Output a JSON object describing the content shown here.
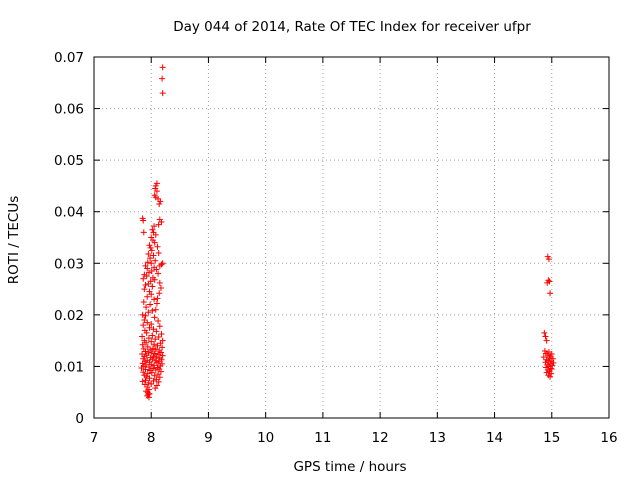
{
  "chart_data": {
    "type": "scatter",
    "title": "Day 044 of 2014, Rate Of TEC Index for receiver ufpr",
    "xlabel": "GPS time / hours",
    "ylabel": "ROTI / TECUs",
    "xlim": [
      7,
      16
    ],
    "ylim": [
      0,
      0.07
    ],
    "xticks": [
      7,
      8,
      9,
      10,
      11,
      12,
      13,
      14,
      15,
      16
    ],
    "xtick_labels": [
      "7",
      "8",
      "9",
      "10",
      "11",
      "12",
      "13",
      "14",
      "15",
      "16"
    ],
    "yticks": [
      0,
      0.01,
      0.02,
      0.03,
      0.04,
      0.05,
      0.06,
      0.07
    ],
    "ytick_labels": [
      "0",
      "0.01",
      "0.02",
      "0.03",
      "0.04",
      "0.05",
      "0.06",
      "0.07"
    ],
    "grid": true,
    "marker": "+",
    "color": "#ff0000",
    "series": [
      {
        "name": "ROTI",
        "points": [
          [
            8.2,
            0.068
          ],
          [
            8.19,
            0.0658
          ],
          [
            8.2,
            0.063
          ],
          [
            8.1,
            0.0455
          ],
          [
            8.08,
            0.045
          ],
          [
            8.07,
            0.0445
          ],
          [
            8.1,
            0.044
          ],
          [
            8.06,
            0.0432
          ],
          [
            8.08,
            0.0428
          ],
          [
            8.12,
            0.0425
          ],
          [
            8.16,
            0.042
          ],
          [
            8.14,
            0.0415
          ],
          [
            7.85,
            0.0387
          ],
          [
            7.86,
            0.0383
          ],
          [
            8.15,
            0.0385
          ],
          [
            8.18,
            0.038
          ],
          [
            8.13,
            0.0375
          ],
          [
            8.05,
            0.0372
          ],
          [
            8.02,
            0.0365
          ],
          [
            8.04,
            0.036
          ],
          [
            7.87,
            0.036
          ],
          [
            8.08,
            0.0355
          ],
          [
            8.0,
            0.035
          ],
          [
            8.03,
            0.0345
          ],
          [
            8.06,
            0.034
          ],
          [
            7.97,
            0.0335
          ],
          [
            8.11,
            0.0332
          ],
          [
            7.99,
            0.033
          ],
          [
            8.01,
            0.0325
          ],
          [
            8.13,
            0.032
          ],
          [
            7.95,
            0.0318
          ],
          [
            8.04,
            0.0315
          ],
          [
            7.98,
            0.031
          ],
          [
            8.07,
            0.0305
          ],
          [
            7.94,
            0.0302
          ],
          [
            8.0,
            0.03
          ],
          [
            8.2,
            0.03
          ],
          [
            8.18,
            0.0298
          ],
          [
            8.15,
            0.0295
          ],
          [
            7.9,
            0.0295
          ],
          [
            8.05,
            0.0292
          ],
          [
            7.93,
            0.029
          ],
          [
            8.09,
            0.0288
          ],
          [
            8.01,
            0.0285
          ],
          [
            7.96,
            0.0282
          ],
          [
            8.12,
            0.028
          ],
          [
            7.88,
            0.0278
          ],
          [
            7.92,
            0.0275
          ],
          [
            8.03,
            0.0272
          ],
          [
            7.86,
            0.027
          ],
          [
            8.06,
            0.0268
          ],
          [
            7.99,
            0.0265
          ],
          [
            8.15,
            0.0262
          ],
          [
            7.95,
            0.026
          ],
          [
            7.9,
            0.0258
          ],
          [
            8.02,
            0.0255
          ],
          [
            7.88,
            0.025
          ],
          [
            8.17,
            0.0252
          ],
          [
            7.97,
            0.0245
          ],
          [
            8.14,
            0.0242
          ],
          [
            8.0,
            0.024
          ],
          [
            7.93,
            0.0235
          ],
          [
            8.11,
            0.0232
          ],
          [
            8.05,
            0.023
          ],
          [
            7.87,
            0.0225
          ],
          [
            8.1,
            0.0222
          ],
          [
            7.98,
            0.022
          ],
          [
            7.91,
            0.0215
          ],
          [
            8.08,
            0.021
          ],
          [
            8.02,
            0.0208
          ],
          [
            7.95,
            0.0205
          ],
          [
            7.85,
            0.02
          ],
          [
            7.9,
            0.0198
          ],
          [
            8.06,
            0.0195
          ],
          [
            7.88,
            0.019
          ],
          [
            8.12,
            0.0188
          ],
          [
            7.93,
            0.0185
          ],
          [
            8.0,
            0.0182
          ],
          [
            7.86,
            0.018
          ],
          [
            8.15,
            0.0178
          ],
          [
            7.97,
            0.0175
          ],
          [
            8.04,
            0.0172
          ],
          [
            7.89,
            0.017
          ],
          [
            8.09,
            0.0168
          ],
          [
            7.92,
            0.0165
          ],
          [
            8.18,
            0.0163
          ],
          [
            8.02,
            0.016
          ],
          [
            7.84,
            0.0158
          ],
          [
            8.13,
            0.0157
          ],
          [
            7.96,
            0.0155
          ],
          [
            8.07,
            0.0153
          ],
          [
            7.88,
            0.015
          ],
          [
            8.2,
            0.015
          ],
          [
            8.0,
            0.0148
          ],
          [
            7.91,
            0.0146
          ],
          [
            8.16,
            0.0145
          ],
          [
            8.05,
            0.0143
          ],
          [
            7.85,
            0.0142
          ],
          [
            8.11,
            0.014
          ],
          [
            7.94,
            0.0138
          ],
          [
            8.19,
            0.0137
          ],
          [
            8.03,
            0.0135
          ],
          [
            7.87,
            0.0134
          ],
          [
            8.08,
            0.0133
          ],
          [
            7.98,
            0.0132
          ],
          [
            8.14,
            0.013
          ],
          [
            7.9,
            0.0129
          ],
          [
            8.01,
            0.0128
          ],
          [
            8.17,
            0.0127
          ],
          [
            7.95,
            0.0126
          ],
          [
            8.06,
            0.0125
          ],
          [
            7.84,
            0.0124
          ],
          [
            8.12,
            0.0123
          ],
          [
            7.92,
            0.0122
          ],
          [
            8.2,
            0.0121
          ],
          [
            8.04,
            0.012
          ],
          [
            7.88,
            0.0119
          ],
          [
            8.09,
            0.0118
          ],
          [
            7.99,
            0.0117
          ],
          [
            8.15,
            0.0116
          ],
          [
            7.86,
            0.0115
          ],
          [
            8.02,
            0.0114
          ],
          [
            8.18,
            0.0113
          ],
          [
            7.93,
            0.0112
          ],
          [
            8.07,
            0.0111
          ],
          [
            7.89,
            0.011
          ],
          [
            8.13,
            0.0109
          ],
          [
            7.97,
            0.0108
          ],
          [
            8.1,
            0.0107
          ],
          [
            7.85,
            0.0106
          ],
          [
            8.19,
            0.0105
          ],
          [
            8.0,
            0.0104
          ],
          [
            7.91,
            0.0103
          ],
          [
            8.05,
            0.0102
          ],
          [
            8.16,
            0.0101
          ],
          [
            7.87,
            0.01
          ],
          [
            7.96,
            0.0099
          ],
          [
            8.11,
            0.0098
          ],
          [
            7.83,
            0.0097
          ],
          [
            8.03,
            0.0096
          ],
          [
            8.14,
            0.0095
          ],
          [
            7.9,
            0.0094
          ],
          [
            8.08,
            0.0093
          ],
          [
            7.98,
            0.0092
          ],
          [
            8.17,
            0.009
          ],
          [
            7.86,
            0.0089
          ],
          [
            8.01,
            0.0088
          ],
          [
            7.94,
            0.0086
          ],
          [
            8.12,
            0.0085
          ],
          [
            7.88,
            0.0083
          ],
          [
            8.06,
            0.0082
          ],
          [
            7.92,
            0.008
          ],
          [
            8.15,
            0.0079
          ],
          [
            7.97,
            0.0077
          ],
          [
            8.09,
            0.0075
          ],
          [
            7.9,
            0.0073
          ],
          [
            8.04,
            0.0072
          ],
          [
            7.85,
            0.0071
          ],
          [
            8.13,
            0.007
          ],
          [
            7.95,
            0.0068
          ],
          [
            8.0,
            0.0066
          ],
          [
            7.89,
            0.0065
          ],
          [
            8.1,
            0.0063
          ],
          [
            7.93,
            0.006
          ],
          [
            8.07,
            0.0058
          ],
          [
            7.96,
            0.0055
          ],
          [
            7.91,
            0.0052
          ],
          [
            7.94,
            0.005
          ],
          [
            7.97,
            0.0047
          ],
          [
            7.95,
            0.0045
          ],
          [
            7.93,
            0.0043
          ],
          [
            7.96,
            0.004
          ],
          [
            14.93,
            0.0313
          ],
          [
            14.95,
            0.0308
          ],
          [
            14.94,
            0.0267
          ],
          [
            14.96,
            0.0265
          ],
          [
            14.92,
            0.0262
          ],
          [
            14.97,
            0.0242
          ],
          [
            14.87,
            0.0165
          ],
          [
            14.89,
            0.0158
          ],
          [
            14.91,
            0.015
          ],
          [
            14.88,
            0.013
          ],
          [
            14.95,
            0.0128
          ],
          [
            14.9,
            0.0125
          ],
          [
            15.0,
            0.0124
          ],
          [
            14.93,
            0.0122
          ],
          [
            14.98,
            0.012
          ],
          [
            14.86,
            0.0118
          ],
          [
            14.96,
            0.0116
          ],
          [
            15.02,
            0.0115
          ],
          [
            14.91,
            0.0113
          ],
          [
            14.94,
            0.0111
          ],
          [
            14.99,
            0.011
          ],
          [
            14.89,
            0.0108
          ],
          [
            15.03,
            0.0107
          ],
          [
            14.97,
            0.0105
          ],
          [
            14.92,
            0.0103
          ],
          [
            15.01,
            0.0102
          ],
          [
            14.95,
            0.01
          ],
          [
            14.9,
            0.0098
          ],
          [
            14.98,
            0.0096
          ],
          [
            15.0,
            0.0095
          ],
          [
            14.93,
            0.0093
          ],
          [
            14.96,
            0.009
          ],
          [
            14.91,
            0.0088
          ],
          [
            14.99,
            0.0086
          ],
          [
            14.94,
            0.0083
          ],
          [
            14.97,
            0.008
          ]
        ]
      }
    ]
  }
}
